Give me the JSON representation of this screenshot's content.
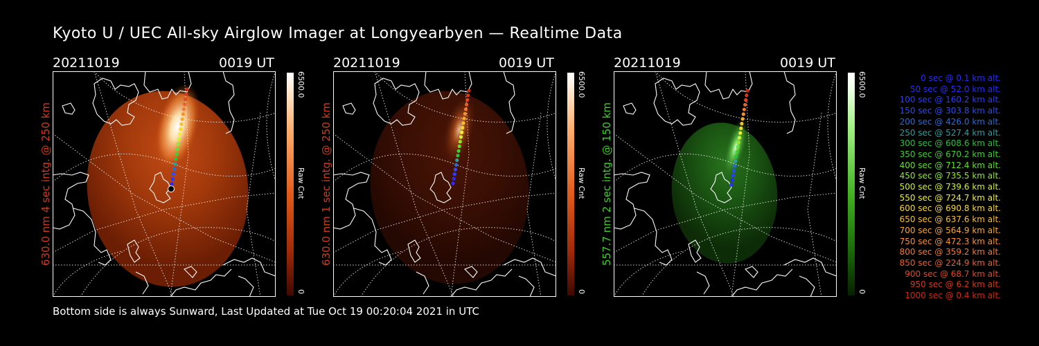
{
  "title": "Kyoto U / UEC All-sky Airglow Imager at Longyearbyen — Realtime Data",
  "panels": [
    {
      "date": "20211019",
      "time": "0019 UT",
      "ylabel": "630.0 nm 4 sec intg. @ 250 km",
      "label_color": "#d23a1e",
      "colorbar_max": "6500.0",
      "colorbar_unit": "Raw Cnt",
      "colorbar_zero": "0",
      "colormap": "red"
    },
    {
      "date": "20211019",
      "time": "0019 UT",
      "ylabel": "630.0 nm 1 sec intg. @ 250 km",
      "label_color": "#d23a1e",
      "colorbar_max": "6500.0",
      "colorbar_unit": "Raw Cnt",
      "colorbar_zero": "0",
      "colormap": "red"
    },
    {
      "date": "20211019",
      "time": "0019 UT",
      "ylabel": "557.7 nm 2 sec intg. @ 150 km",
      "label_color": "#3fcf2a",
      "colorbar_max": "6500.0",
      "colorbar_unit": "Raw Cnt",
      "colorbar_zero": "0",
      "colormap": "green"
    }
  ],
  "footer": "Bottom side is always Sunward, Last Updated at Tue Oct 19 00:20:04 2021 in UTC",
  "legend": [
    {
      "text": "0 sec @   0.1 km alt.",
      "color": "#2a2aff"
    },
    {
      "text": "50 sec @  52.0 km alt.",
      "color": "#2a2aff"
    },
    {
      "text": "100 sec @ 160.2 km alt.",
      "color": "#2a3cff"
    },
    {
      "text": "150 sec @ 303.8 km alt.",
      "color": "#2a4cf0"
    },
    {
      "text": "200 sec @ 426.0 km alt.",
      "color": "#2a6ad8"
    },
    {
      "text": "250 sec @ 527.4 km alt.",
      "color": "#2aa0a0"
    },
    {
      "text": "300 sec @ 608.6 km alt.",
      "color": "#2ac040"
    },
    {
      "text": "350 sec @ 670.2 km alt.",
      "color": "#40d030"
    },
    {
      "text": "400 sec @ 712.4 km alt.",
      "color": "#60e030"
    },
    {
      "text": "450 sec @ 735.5 km alt.",
      "color": "#90e830"
    },
    {
      "text": "500 sec @ 739.6 km alt.",
      "color": "#d0f030"
    },
    {
      "text": "550 sec @ 724.7 km alt.",
      "color": "#f0f030"
    },
    {
      "text": "600 sec @ 690.8 km alt.",
      "color": "#f8d830"
    },
    {
      "text": "650 sec @ 637.6 km alt.",
      "color": "#f8c030"
    },
    {
      "text": "700 sec @ 564.9 km alt.",
      "color": "#f8a830"
    },
    {
      "text": "750 sec @ 472.3 km alt.",
      "color": "#f89030"
    },
    {
      "text": "800 sec @ 359.2 km alt.",
      "color": "#f07830"
    },
    {
      "text": "850 sec @ 224.9 km alt.",
      "color": "#e86028"
    },
    {
      "text": "900 sec @  68.7 km alt.",
      "color": "#e04820"
    },
    {
      "text": "950 sec @   6.2 km alt.",
      "color": "#d83818"
    },
    {
      "text": "1000 sec @   0.4 km alt.",
      "color": "#d02810"
    }
  ]
}
